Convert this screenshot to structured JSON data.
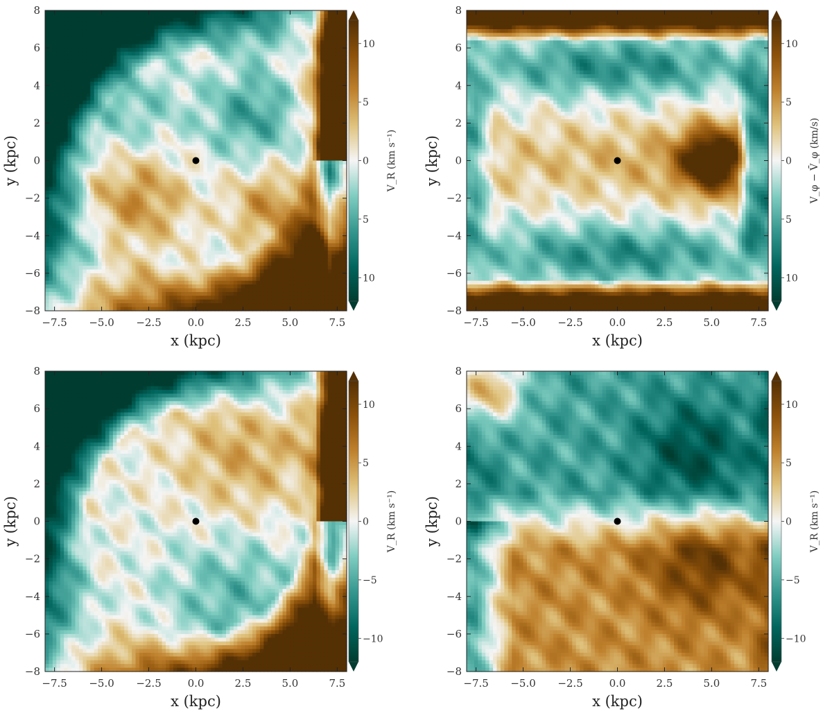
{
  "chart_data": [
    {
      "type": "heatmap",
      "panel": "top-left",
      "xlabel": "x (kpc)",
      "ylabel": "y (kpc)",
      "xlim": [
        -8,
        8
      ],
      "ylim": [
        -8,
        8
      ],
      "xticks": [
        "−7.5",
        "−5.0",
        "−2.5",
        "0.0",
        "2.5",
        "5.0",
        "7.5"
      ],
      "yticks": [
        "−8",
        "−6",
        "−4",
        "−2",
        "0",
        "2",
        "4",
        "6",
        "8"
      ],
      "colorbar": {
        "label": "V_R (km s⁻¹)",
        "range": [
          -12,
          12
        ],
        "ticks": [
          "10",
          "5",
          "0",
          "5",
          "10"
        ]
      },
      "marker": {
        "x": 0,
        "y": 0
      },
      "pattern": "a"
    },
    {
      "type": "heatmap",
      "panel": "top-right",
      "xlabel": "x (kpc)",
      "ylabel": "y (kpc)",
      "xlim": [
        -8,
        8
      ],
      "ylim": [
        -8,
        8
      ],
      "xticks": [
        "−7.5",
        "−5.0",
        "−2.5",
        "0.0",
        "2.5",
        "5.0",
        "7.5"
      ],
      "yticks": [
        "−8",
        "−6",
        "−4",
        "−2",
        "0",
        "2",
        "4",
        "6",
        "8"
      ],
      "colorbar": {
        "label": "V_φ − V̄_φ (km/s)",
        "range": [
          -12,
          12
        ],
        "ticks": [
          "10",
          "5",
          "0",
          "5",
          "10"
        ]
      },
      "marker": {
        "x": 0,
        "y": 0
      },
      "pattern": "b"
    },
    {
      "type": "heatmap",
      "panel": "bottom-left",
      "xlabel": "x (kpc)",
      "ylabel": "y (kpc)",
      "xlim": [
        -8,
        8
      ],
      "ylim": [
        -8,
        8
      ],
      "xticks": [
        "−7.5",
        "−5.0",
        "−2.5",
        "0.0",
        "2.5",
        "5.0",
        "7.5"
      ],
      "yticks": [
        "−8",
        "−6",
        "−4",
        "−2",
        "0",
        "2",
        "4",
        "6",
        "8"
      ],
      "colorbar": {
        "label": "V_R (km s⁻¹)",
        "range": [
          -12,
          12
        ],
        "ticks": [
          "10",
          "5",
          "0",
          "−5",
          "−10"
        ]
      },
      "marker": {
        "x": 0,
        "y": 0
      },
      "pattern": "c"
    },
    {
      "type": "heatmap",
      "panel": "bottom-right",
      "xlabel": "x (kpc)",
      "ylabel": "y (kpc)",
      "xlim": [
        -8,
        8
      ],
      "ylim": [
        -8,
        8
      ],
      "xticks": [
        "−7.5",
        "−5.0",
        "−2.5",
        "0.0",
        "2.5",
        "5.0",
        "7.5"
      ],
      "yticks": [
        "−8",
        "−6",
        "−4",
        "−2",
        "0",
        "2",
        "4",
        "6",
        "8"
      ],
      "colorbar": {
        "label": "V_R (km s⁻¹)",
        "range": [
          -12,
          12
        ],
        "ticks": [
          "10",
          "5",
          "0",
          "−5",
          "−10"
        ]
      },
      "marker": {
        "x": 0,
        "y": 0
      },
      "pattern": "d"
    }
  ],
  "colormap": {
    "name": "BrBG-like",
    "positive": "#543005",
    "neutral": "#f5f5f5",
    "negative": "#003c30"
  }
}
